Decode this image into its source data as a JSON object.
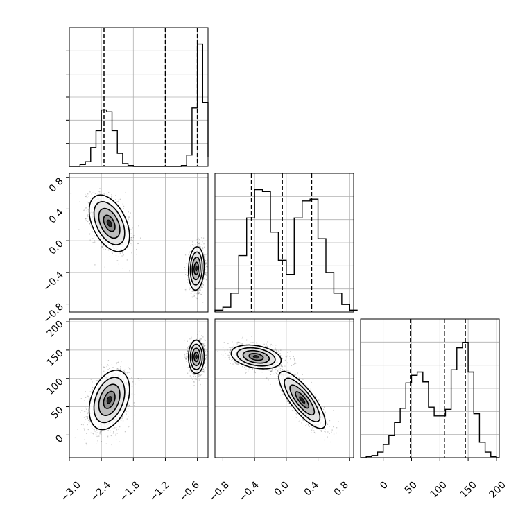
{
  "chart_data": {
    "type": "corner",
    "grid": true,
    "x_ticks": {
      "p0": [
        "−3.0",
        "−2.4",
        "−1.8",
        "−1.2",
        "−0.6"
      ],
      "p1": [
        "−0.8",
        "−0.4",
        "0.0",
        "0.4",
        "0.8"
      ],
      "p2": [
        "0",
        "50",
        "100",
        "150",
        "200"
      ]
    },
    "y_ticks": {
      "p1": [
        "0.8",
        "0.4",
        "0.0",
        "−0.4",
        "−0.8"
      ],
      "p2": [
        "200",
        "150",
        "100",
        "50",
        "0"
      ]
    },
    "ranges": {
      "p0": [
        -3.0,
        -0.4
      ],
      "p1": [
        -0.9,
        0.85
      ],
      "p2": [
        -40,
        205
      ]
    },
    "quantiles": {
      "p0": [
        -2.35,
        -1.2,
        -0.6
      ],
      "p1": [
        -0.44,
        -0.05,
        0.32
      ],
      "p2": [
        48,
        108,
        145
      ]
    },
    "histograms": [
      {
        "param": "p0",
        "bin_edges": [
          -3.0,
          -2.9,
          -2.8,
          -2.7,
          -2.6,
          -2.5,
          -2.4,
          -2.3,
          -2.2,
          -2.1,
          -2.0,
          -1.9,
          -1.8,
          -1.7,
          -1.6,
          -1.5,
          -1.4,
          -1.3,
          -1.2,
          -1.1,
          -1.0,
          -0.9,
          -0.8,
          -0.7,
          -0.6,
          -0.5,
          -0.4
        ],
        "counts": [
          0,
          0,
          2,
          5,
          20,
          38,
          60,
          58,
          38,
          14,
          3,
          1,
          0,
          0,
          0,
          0,
          0,
          0,
          0,
          0,
          0,
          1,
          12,
          62,
          130,
          68,
          10
        ],
        "ymax": 140
      },
      {
        "param": "p1",
        "bin_edges": [
          -0.9,
          -0.8,
          -0.7,
          -0.6,
          -0.5,
          -0.4,
          -0.3,
          -0.2,
          -0.1,
          0.0,
          0.1,
          0.2,
          0.3,
          0.4,
          0.5,
          0.6,
          0.7,
          0.8,
          0.9
        ],
        "counts": [
          2,
          5,
          20,
          60,
          100,
          130,
          128,
          85,
          55,
          40,
          100,
          118,
          120,
          78,
          42,
          20,
          8,
          2
        ],
        "ymax": 140
      },
      {
        "param": "p2",
        "bin_edges": [
          -40,
          -30,
          -20,
          -10,
          0,
          10,
          20,
          30,
          40,
          50,
          60,
          70,
          80,
          90,
          100,
          110,
          120,
          130,
          140,
          150,
          160,
          170,
          180,
          190,
          200,
          205
        ],
        "counts": [
          0,
          1,
          2,
          5,
          12,
          20,
          32,
          45,
          68,
          75,
          78,
          69,
          46,
          38,
          38,
          44,
          80,
          100,
          105,
          78,
          40,
          14,
          5,
          1,
          0
        ],
        "ymax": 120
      }
    ],
    "density_2d": [
      {
        "x": "p0",
        "y": "p1",
        "modes": [
          {
            "center": [
              -2.25,
              0.22
            ],
            "sd": [
              0.18,
              0.17
            ],
            "rho": -0.45,
            "n": 1500
          },
          {
            "center": [
              -0.62,
              -0.35
            ],
            "sd": [
              0.07,
              0.13
            ],
            "rho": 0.1,
            "n": 1500
          }
        ]
      },
      {
        "x": "p0",
        "y": "p2",
        "modes": [
          {
            "center": [
              -2.25,
              62
            ],
            "sd": [
              0.18,
              25
            ],
            "rho": 0.35,
            "n": 1500
          },
          {
            "center": [
              -0.62,
              138
            ],
            "sd": [
              0.07,
              14
            ],
            "rho": 0.0,
            "n": 1500
          }
        ]
      },
      {
        "x": "p1",
        "y": "p2",
        "modes": [
          {
            "center": [
              -0.38,
              138
            ],
            "sd": [
              0.15,
              10
            ],
            "rho": -0.3,
            "n": 1500
          },
          {
            "center": [
              0.2,
              62
            ],
            "sd": [
              0.14,
              24
            ],
            "rho": -0.8,
            "n": 1500
          }
        ]
      }
    ]
  }
}
